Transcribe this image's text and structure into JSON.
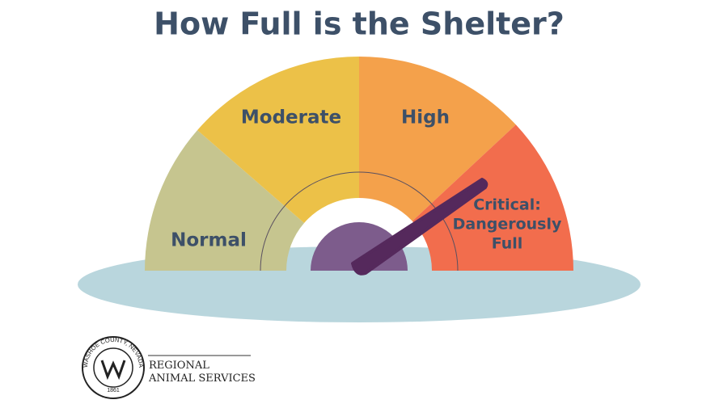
{
  "title": "How Full is the Shelter?",
  "gauge": {
    "segments": [
      "Normal",
      "Moderate",
      "High",
      [
        "Critical:",
        "Dangerously",
        "Full"
      ]
    ]
  },
  "logo": {
    "ring_top": "WASHOE COUNTY, NEVADA",
    "year": "1861",
    "name": [
      "REGIONAL",
      "ANIMAL SERVICES"
    ]
  }
}
